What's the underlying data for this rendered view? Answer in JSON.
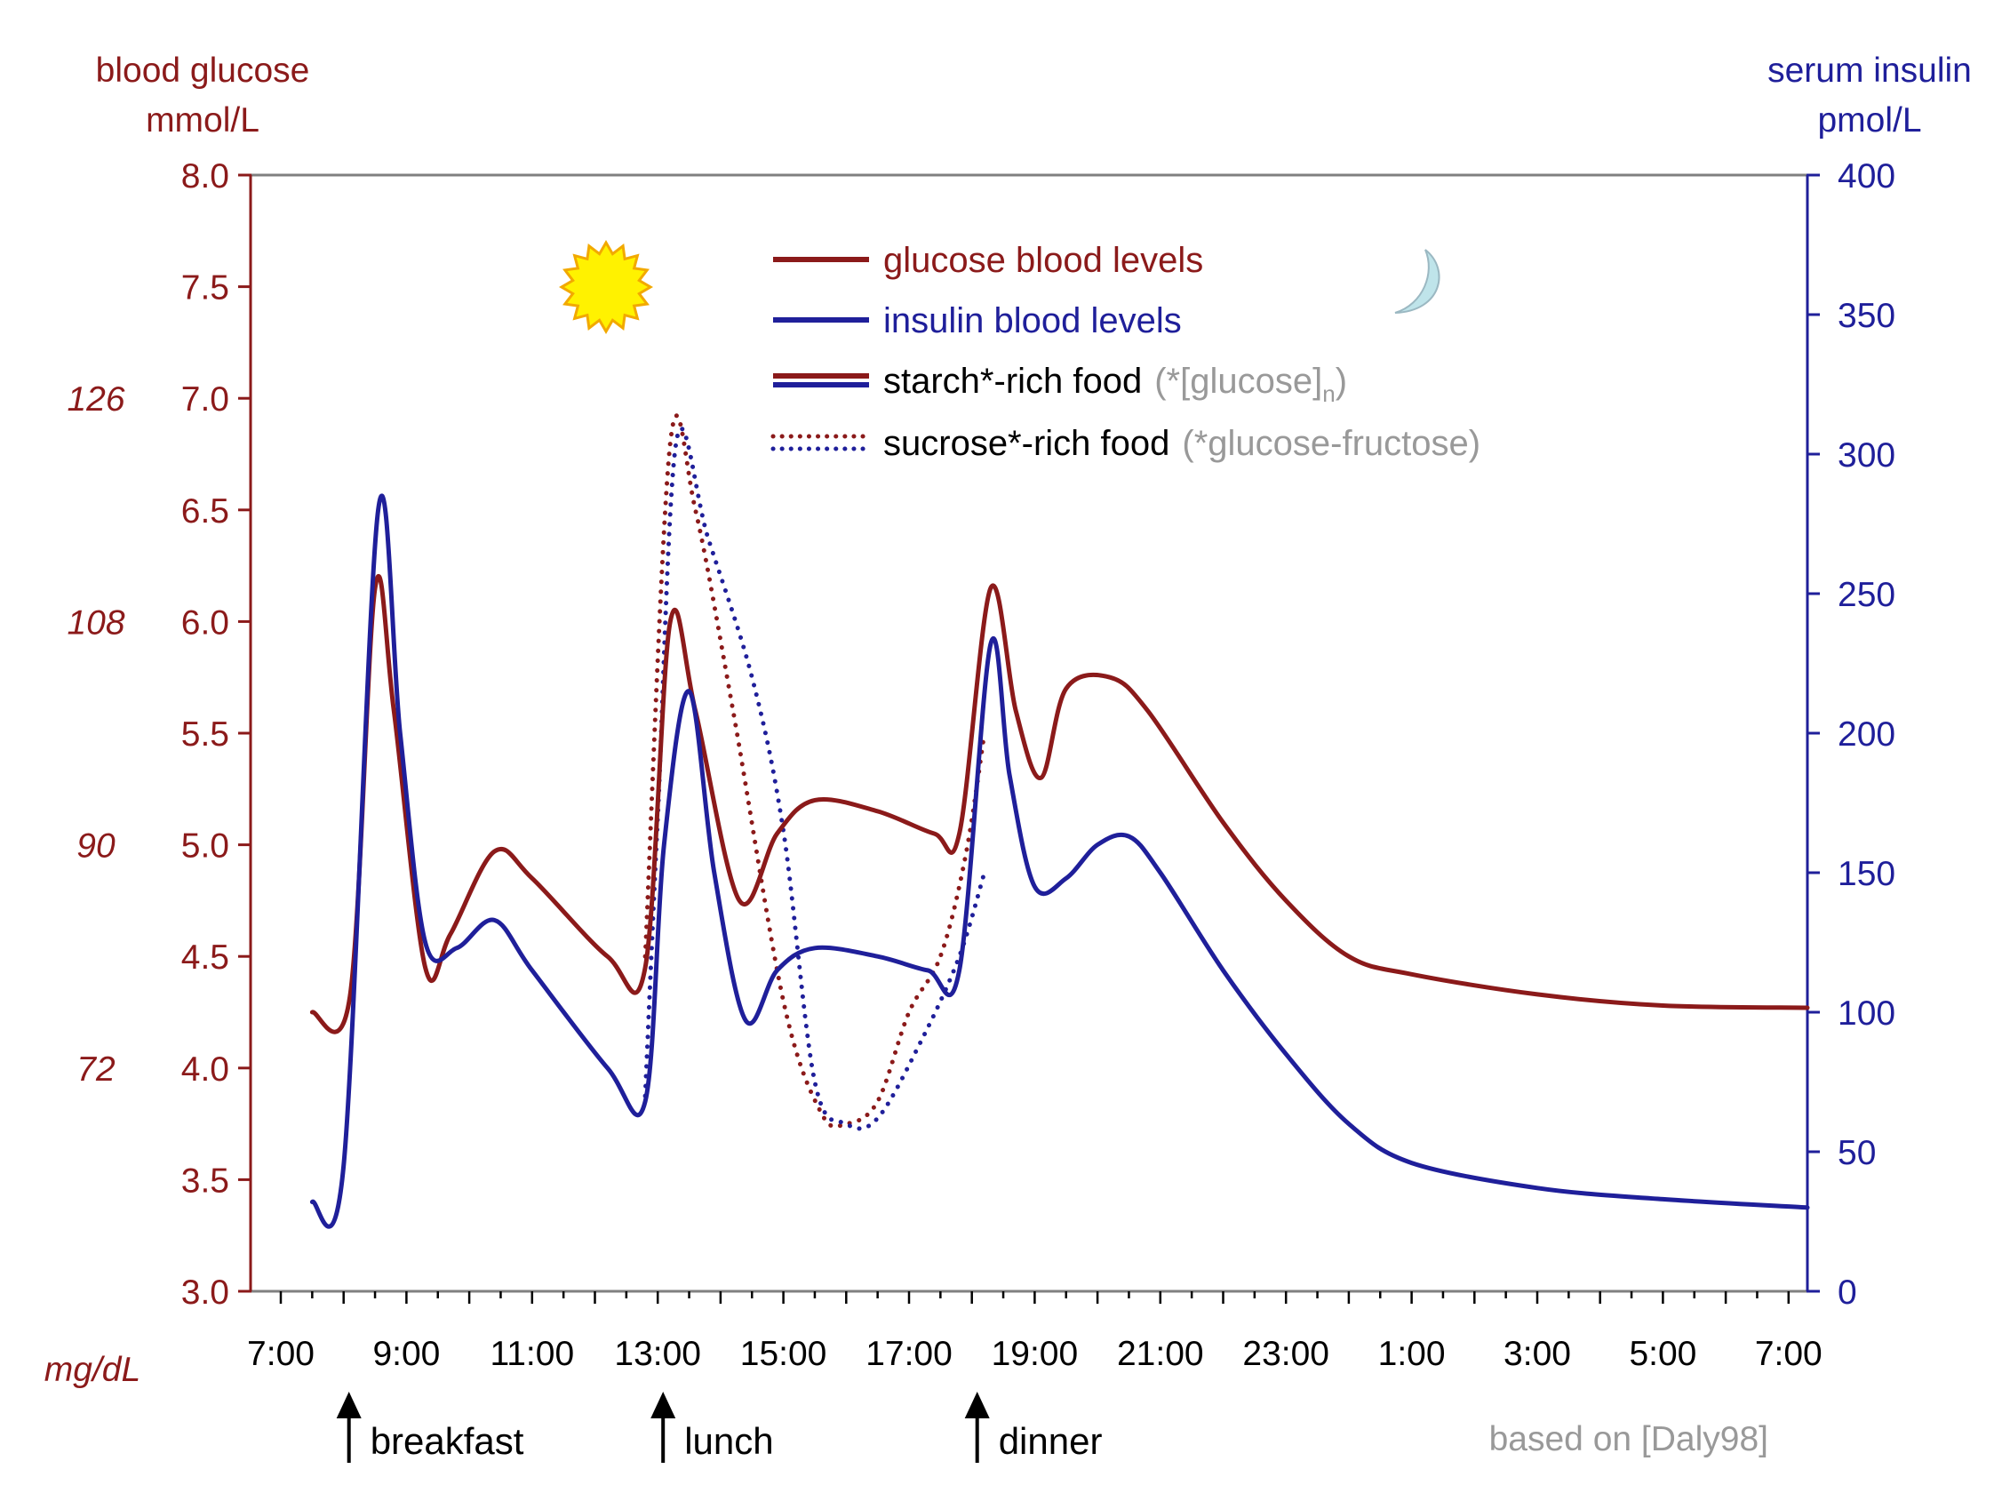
{
  "chart_data": {
    "type": "line",
    "left_axis": {
      "title_line1": "blood glucose",
      "title_line2": "mmol/L",
      "min": 3.0,
      "max": 8.0,
      "step": 0.5,
      "ticks": [
        "3.0",
        "3.5",
        "4.0",
        "4.5",
        "5.0",
        "5.5",
        "6.0",
        "6.5",
        "7.0",
        "7.5",
        "8.0"
      ],
      "color": "#8B1A1A"
    },
    "mgdl_axis": {
      "title": "mg/dL",
      "ticks": [
        {
          "mmol": 7.0,
          "label": "126"
        },
        {
          "mmol": 6.0,
          "label": "108"
        },
        {
          "mmol": 5.0,
          "label": "90"
        },
        {
          "mmol": 4.0,
          "label": "72"
        }
      ]
    },
    "right_axis": {
      "title_line1": "serum insulin",
      "title_line2": "pmol/L",
      "min": 0,
      "max": 400,
      "step": 50,
      "ticks": [
        "0",
        "50",
        "100",
        "150",
        "200",
        "250",
        "300",
        "350",
        "400"
      ],
      "color": "#1F1F9A"
    },
    "x_axis": {
      "min": 7.0,
      "max": 31.5,
      "tick_labels": [
        {
          "h": 7,
          "label": "7:00"
        },
        {
          "h": 9,
          "label": "9:00"
        },
        {
          "h": 11,
          "label": "11:00"
        },
        {
          "h": 13,
          "label": "13:00"
        },
        {
          "h": 15,
          "label": "15:00"
        },
        {
          "h": 17,
          "label": "17:00"
        },
        {
          "h": 19,
          "label": "19:00"
        },
        {
          "h": 21,
          "label": "21:00"
        },
        {
          "h": 23,
          "label": "23:00"
        },
        {
          "h": 25,
          "label": "1:00"
        },
        {
          "h": 27,
          "label": "3:00"
        },
        {
          "h": 29,
          "label": "5:00"
        },
        {
          "h": 31,
          "label": "7:00"
        }
      ]
    },
    "meals": [
      {
        "h": 8.0,
        "label": "breakfast"
      },
      {
        "h": 13.0,
        "label": "lunch"
      },
      {
        "h": 18.0,
        "label": "dinner"
      }
    ],
    "legend": [
      {
        "label": "glucose blood levels",
        "note": "",
        "sub": "",
        "note_end": "",
        "style": "solid",
        "color": "#8B1A1A",
        "text_color": "#8B1A1A"
      },
      {
        "label": "insulin blood levels",
        "note": "",
        "sub": "",
        "note_end": "",
        "style": "solid",
        "color": "#1F1F9A",
        "text_color": "#1F1F9A"
      },
      {
        "label": "starch*-rich food",
        "note": "(*[glucose]",
        "sub": "n",
        "note_end": ")",
        "style": "double-solid",
        "color": "#8B1A1A",
        "color2": "#1F1F9A",
        "text_color": "#000000"
      },
      {
        "label": "sucrose*-rich food",
        "note": "(*glucose-fructose)",
        "sub": "",
        "note_end": "",
        "style": "double-dotted",
        "color": "#8B1A1A",
        "color2": "#1F1F9A",
        "text_color": "#000000"
      }
    ],
    "source_note": "based on [Daly98]",
    "series": [
      {
        "name": "glucose blood levels",
        "axis": "left",
        "style": "solid",
        "color": "#8B1A1A",
        "points": [
          [
            7.5,
            4.25
          ],
          [
            8.1,
            4.32
          ],
          [
            8.5,
            6.15
          ],
          [
            8.8,
            5.6
          ],
          [
            9.3,
            4.45
          ],
          [
            9.7,
            4.6
          ],
          [
            10.4,
            4.97
          ],
          [
            11.0,
            4.85
          ],
          [
            12.2,
            4.5
          ],
          [
            12.8,
            4.45
          ],
          [
            13.2,
            6.0
          ],
          [
            13.6,
            5.6
          ],
          [
            14.3,
            4.75
          ],
          [
            14.9,
            5.05
          ],
          [
            15.5,
            5.2
          ],
          [
            16.5,
            5.15
          ],
          [
            17.4,
            5.05
          ],
          [
            17.8,
            5.05
          ],
          [
            18.3,
            6.15
          ],
          [
            18.7,
            5.6
          ],
          [
            19.1,
            5.3
          ],
          [
            19.5,
            5.7
          ],
          [
            20.2,
            5.75
          ],
          [
            20.8,
            5.6
          ],
          [
            22.0,
            5.1
          ],
          [
            23.0,
            4.75
          ],
          [
            24.0,
            4.5
          ],
          [
            25.0,
            4.42
          ],
          [
            27.0,
            4.33
          ],
          [
            29.0,
            4.28
          ],
          [
            31.3,
            4.27
          ]
        ]
      },
      {
        "name": "insulin blood levels",
        "axis": "right",
        "style": "solid",
        "color": "#1F1F9A",
        "points": [
          [
            7.5,
            32
          ],
          [
            8.0,
            45
          ],
          [
            8.55,
            280
          ],
          [
            8.9,
            200
          ],
          [
            9.3,
            125
          ],
          [
            9.8,
            123
          ],
          [
            10.4,
            133
          ],
          [
            11.0,
            115
          ],
          [
            12.2,
            80
          ],
          [
            12.8,
            68
          ],
          [
            13.1,
            160
          ],
          [
            13.5,
            215
          ],
          [
            13.9,
            150
          ],
          [
            14.4,
            97
          ],
          [
            14.9,
            115
          ],
          [
            15.5,
            123
          ],
          [
            16.5,
            120
          ],
          [
            17.3,
            115
          ],
          [
            17.8,
            115
          ],
          [
            18.3,
            232
          ],
          [
            18.6,
            185
          ],
          [
            19.0,
            145
          ],
          [
            19.5,
            148
          ],
          [
            20.0,
            160
          ],
          [
            20.5,
            163
          ],
          [
            21.0,
            150
          ],
          [
            22.0,
            115
          ],
          [
            23.0,
            85
          ],
          [
            24.0,
            60
          ],
          [
            25.0,
            46
          ],
          [
            27.0,
            37
          ],
          [
            29.0,
            33
          ],
          [
            31.3,
            30
          ]
        ]
      },
      {
        "name": "sucrose*-rich food (glucose)",
        "axis": "left",
        "style": "dotted",
        "color": "#8B1A1A",
        "points": [
          [
            12.8,
            4.5
          ],
          [
            13.2,
            6.8
          ],
          [
            13.6,
            6.5
          ],
          [
            14.2,
            5.6
          ],
          [
            15.0,
            4.3
          ],
          [
            15.6,
            3.8
          ],
          [
            16.0,
            3.75
          ],
          [
            16.5,
            3.85
          ],
          [
            17.0,
            4.25
          ],
          [
            17.5,
            4.5
          ],
          [
            17.9,
            4.95
          ],
          [
            18.2,
            5.5
          ]
        ]
      },
      {
        "name": "sucrose*-rich food (insulin)",
        "axis": "right",
        "style": "dotted",
        "color": "#1F1F9A",
        "points": [
          [
            12.8,
            70
          ],
          [
            13.0,
            170
          ],
          [
            13.3,
            305
          ],
          [
            13.8,
            270
          ],
          [
            14.5,
            220
          ],
          [
            15.0,
            165
          ],
          [
            15.5,
            75
          ],
          [
            16.0,
            60
          ],
          [
            16.5,
            62
          ],
          [
            17.2,
            90
          ],
          [
            17.8,
            120
          ],
          [
            18.2,
            150
          ]
        ]
      }
    ]
  }
}
